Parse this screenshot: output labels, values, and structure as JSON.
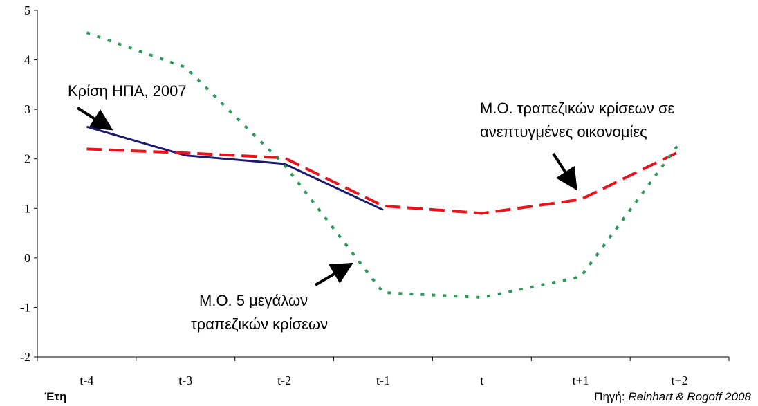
{
  "chart_data": {
    "type": "line",
    "categories": [
      "t-4",
      "t-3",
      "t-2",
      "t-1",
      "t",
      "t+1",
      "t+2"
    ],
    "series": [
      {
        "color": "#1a1a6e",
        "style": "solid",
        "values": [
          2.65,
          2.07,
          1.9,
          0.97,
          null,
          null,
          null
        ]
      },
      {
        "color": "#e8141b",
        "style": "dashed",
        "values": [
          2.2,
          2.12,
          2.02,
          1.05,
          0.9,
          1.18,
          2.15
        ]
      },
      {
        "color": "#2e9a58",
        "style": "dotted",
        "values": [
          4.55,
          3.85,
          1.88,
          -0.7,
          -0.8,
          -0.38,
          2.32
        ]
      }
    ],
    "ylim": [
      -2,
      5
    ],
    "yticks": [
      -2,
      -1,
      0,
      1,
      2,
      3,
      4,
      5
    ],
    "xlabel": "Έτη",
    "annotations": [
      [
        "Κρίση ΗΠΑ, 2007"
      ],
      [
        "Μ.Ο. τραπεζικών κρίσεων σε",
        "ανεπτυγμένες οικονομίες"
      ],
      [
        "Μ.Ο. 5 μεγάλων",
        "τραπεζικών κρίσεων"
      ]
    ],
    "source_label": "Πηγή:",
    "source": "Reinhart & Rogoff 2008"
  }
}
